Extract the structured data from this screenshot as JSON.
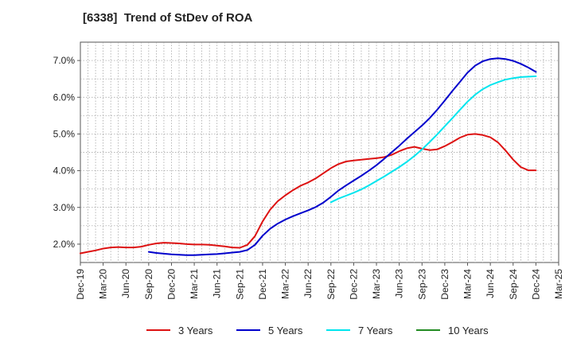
{
  "chart_data": {
    "type": "line",
    "title": "[6338]  Trend of StDev of ROA",
    "xlabel": "",
    "ylabel": "",
    "x_ticks": [
      "Dec-19",
      "Mar-20",
      "Jun-20",
      "Sep-20",
      "Dec-20",
      "Mar-21",
      "Jun-21",
      "Sep-21",
      "Dec-21",
      "Mar-22",
      "Jun-22",
      "Sep-22",
      "Dec-22",
      "Mar-23",
      "Jun-23",
      "Sep-23",
      "Dec-23",
      "Mar-24",
      "Jun-24",
      "Sep-24",
      "Dec-24",
      "Mar-25"
    ],
    "y_ticks": [
      "2.0%",
      "3.0%",
      "4.0%",
      "5.0%",
      "6.0%",
      "7.0%"
    ],
    "y_tick_values": [
      2.0,
      3.0,
      4.0,
      5.0,
      6.0,
      7.0
    ],
    "ylim": [
      1.5,
      7.5
    ],
    "grid": true,
    "legend_position": "bottom",
    "series": [
      {
        "name": "3 Years",
        "color": "#dd1111",
        "points": [
          [
            "Dec-19",
            1.75
          ],
          [
            "Jan-20",
            1.79
          ],
          [
            "Feb-20",
            1.83
          ],
          [
            "Mar-20",
            1.88
          ],
          [
            "Apr-20",
            1.91
          ],
          [
            "May-20",
            1.92
          ],
          [
            "Jun-20",
            1.91
          ],
          [
            "Jul-20",
            1.91
          ],
          [
            "Aug-20",
            1.93
          ],
          [
            "Sep-20",
            1.98
          ],
          [
            "Oct-20",
            2.02
          ],
          [
            "Nov-20",
            2.04
          ],
          [
            "Dec-20",
            2.03
          ],
          [
            "Jan-21",
            2.02
          ],
          [
            "Feb-21",
            2.0
          ],
          [
            "Mar-21",
            1.99
          ],
          [
            "Apr-21",
            1.99
          ],
          [
            "May-21",
            1.98
          ],
          [
            "Jun-21",
            1.96
          ],
          [
            "Jul-21",
            1.94
          ],
          [
            "Aug-21",
            1.91
          ],
          [
            "Sep-21",
            1.9
          ],
          [
            "Oct-21",
            1.98
          ],
          [
            "Nov-21",
            2.22
          ],
          [
            "Dec-21",
            2.62
          ],
          [
            "Jan-22",
            2.94
          ],
          [
            "Feb-22",
            3.17
          ],
          [
            "Mar-22",
            3.33
          ],
          [
            "Apr-22",
            3.47
          ],
          [
            "May-22",
            3.59
          ],
          [
            "Jun-22",
            3.68
          ],
          [
            "Jul-22",
            3.79
          ],
          [
            "Aug-22",
            3.93
          ],
          [
            "Sep-22",
            4.07
          ],
          [
            "Oct-22",
            4.18
          ],
          [
            "Nov-22",
            4.25
          ],
          [
            "Dec-22",
            4.28
          ],
          [
            "Jan-23",
            4.3
          ],
          [
            "Feb-23",
            4.32
          ],
          [
            "Mar-23",
            4.34
          ],
          [
            "Apr-23",
            4.37
          ],
          [
            "May-23",
            4.43
          ],
          [
            "Jun-23",
            4.53
          ],
          [
            "Jul-23",
            4.61
          ],
          [
            "Aug-23",
            4.65
          ],
          [
            "Sep-23",
            4.6
          ],
          [
            "Oct-23",
            4.56
          ],
          [
            "Nov-23",
            4.58
          ],
          [
            "Dec-23",
            4.67
          ],
          [
            "Jan-24",
            4.78
          ],
          [
            "Feb-24",
            4.9
          ],
          [
            "Mar-24",
            4.98
          ],
          [
            "Apr-24",
            5.0
          ],
          [
            "May-24",
            4.97
          ],
          [
            "Jun-24",
            4.91
          ],
          [
            "Jul-24",
            4.77
          ],
          [
            "Aug-24",
            4.55
          ],
          [
            "Sep-24",
            4.3
          ],
          [
            "Oct-24",
            4.1
          ],
          [
            "Nov-24",
            4.01
          ],
          [
            "Dec-24",
            4.01
          ]
        ]
      },
      {
        "name": "5 Years",
        "color": "#0000cc",
        "points": [
          [
            "Sep-20",
            1.79
          ],
          [
            "Oct-20",
            1.76
          ],
          [
            "Nov-20",
            1.74
          ],
          [
            "Dec-20",
            1.72
          ],
          [
            "Jan-21",
            1.71
          ],
          [
            "Feb-21",
            1.7
          ],
          [
            "Mar-21",
            1.7
          ],
          [
            "Apr-21",
            1.71
          ],
          [
            "May-21",
            1.72
          ],
          [
            "Jun-21",
            1.73
          ],
          [
            "Jul-21",
            1.75
          ],
          [
            "Aug-21",
            1.77
          ],
          [
            "Sep-21",
            1.79
          ],
          [
            "Oct-21",
            1.84
          ],
          [
            "Nov-21",
            1.98
          ],
          [
            "Dec-21",
            2.23
          ],
          [
            "Jan-22",
            2.42
          ],
          [
            "Feb-22",
            2.56
          ],
          [
            "Mar-22",
            2.67
          ],
          [
            "Apr-22",
            2.76
          ],
          [
            "May-22",
            2.84
          ],
          [
            "Jun-22",
            2.92
          ],
          [
            "Jul-22",
            3.01
          ],
          [
            "Aug-22",
            3.13
          ],
          [
            "Sep-22",
            3.29
          ],
          [
            "Oct-22",
            3.46
          ],
          [
            "Nov-22",
            3.6
          ],
          [
            "Dec-22",
            3.73
          ],
          [
            "Jan-23",
            3.86
          ],
          [
            "Feb-23",
            4.0
          ],
          [
            "Mar-23",
            4.15
          ],
          [
            "Apr-23",
            4.32
          ],
          [
            "May-23",
            4.5
          ],
          [
            "Jun-23",
            4.68
          ],
          [
            "Jul-23",
            4.87
          ],
          [
            "Aug-23",
            5.05
          ],
          [
            "Sep-23",
            5.23
          ],
          [
            "Oct-23",
            5.43
          ],
          [
            "Nov-23",
            5.66
          ],
          [
            "Dec-23",
            5.91
          ],
          [
            "Jan-24",
            6.17
          ],
          [
            "Feb-24",
            6.42
          ],
          [
            "Mar-24",
            6.67
          ],
          [
            "Apr-24",
            6.86
          ],
          [
            "May-24",
            6.98
          ],
          [
            "Jun-24",
            7.04
          ],
          [
            "Jul-24",
            7.06
          ],
          [
            "Aug-24",
            7.04
          ],
          [
            "Sep-24",
            6.99
          ],
          [
            "Oct-24",
            6.91
          ],
          [
            "Nov-24",
            6.81
          ],
          [
            "Dec-24",
            6.69
          ]
        ]
      },
      {
        "name": "7 Years",
        "color": "#00e5ee",
        "points": [
          [
            "Sep-22",
            3.14
          ],
          [
            "Oct-22",
            3.24
          ],
          [
            "Nov-22",
            3.32
          ],
          [
            "Dec-22",
            3.4
          ],
          [
            "Jan-23",
            3.49
          ],
          [
            "Feb-23",
            3.6
          ],
          [
            "Mar-23",
            3.72
          ],
          [
            "Apr-23",
            3.84
          ],
          [
            "May-23",
            3.97
          ],
          [
            "Jun-23",
            4.1
          ],
          [
            "Jul-23",
            4.24
          ],
          [
            "Aug-23",
            4.4
          ],
          [
            "Sep-23",
            4.58
          ],
          [
            "Oct-23",
            4.78
          ],
          [
            "Nov-23",
            4.99
          ],
          [
            "Dec-23",
            5.21
          ],
          [
            "Jan-24",
            5.43
          ],
          [
            "Feb-24",
            5.66
          ],
          [
            "Mar-24",
            5.88
          ],
          [
            "Apr-24",
            6.07
          ],
          [
            "May-24",
            6.22
          ],
          [
            "Jun-24",
            6.33
          ],
          [
            "Jul-24",
            6.41
          ],
          [
            "Aug-24",
            6.48
          ],
          [
            "Sep-24",
            6.52
          ],
          [
            "Oct-24",
            6.55
          ],
          [
            "Nov-24",
            6.56
          ],
          [
            "Dec-24",
            6.57
          ]
        ]
      },
      {
        "name": "10 Years",
        "color": "#228b22",
        "points": []
      }
    ]
  }
}
